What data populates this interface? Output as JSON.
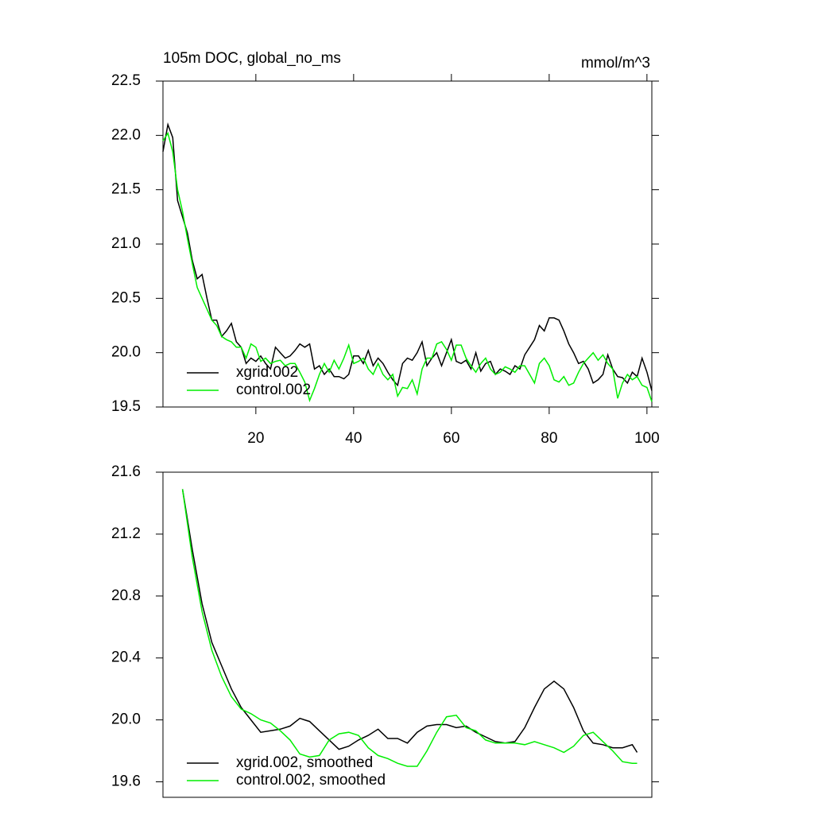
{
  "chart_data": [
    {
      "type": "line",
      "title": "105m DOC, global_no_ms",
      "units": "mmol/m^3",
      "x": [
        1,
        2,
        3,
        4,
        5,
        6,
        7,
        8,
        9,
        10,
        11,
        12,
        13,
        14,
        15,
        16,
        17,
        18,
        19,
        20,
        21,
        22,
        23,
        24,
        25,
        26,
        27,
        28,
        29,
        30,
        31,
        32,
        33,
        34,
        35,
        36,
        37,
        38,
        39,
        40,
        41,
        42,
        43,
        44,
        45,
        46,
        47,
        48,
        49,
        50,
        51,
        52,
        53,
        54,
        55,
        56,
        57,
        58,
        59,
        60,
        61,
        62,
        63,
        64,
        65,
        66,
        67,
        68,
        69,
        70,
        71,
        72,
        73,
        74,
        75,
        76,
        77,
        78,
        79,
        80,
        81,
        82,
        83,
        84,
        85,
        86,
        87,
        88,
        89,
        90,
        91,
        92,
        93,
        94,
        95,
        96,
        97,
        98,
        99,
        100,
        101
      ],
      "series": [
        {
          "name": "xgrid.002",
          "color": "#000000",
          "values": [
            21.85,
            22.1,
            21.98,
            21.4,
            21.25,
            21.1,
            20.85,
            20.68,
            20.72,
            20.5,
            20.3,
            20.3,
            20.15,
            20.2,
            20.27,
            20.1,
            20.05,
            19.9,
            19.95,
            19.92,
            19.97,
            19.9,
            19.85,
            20.05,
            20.0,
            19.95,
            19.97,
            20.02,
            20.08,
            20.05,
            20.08,
            19.85,
            19.88,
            19.8,
            19.85,
            19.78,
            19.78,
            19.76,
            19.8,
            19.97,
            19.97,
            19.9,
            20.02,
            19.88,
            19.95,
            19.9,
            19.82,
            19.75,
            19.7,
            19.9,
            19.95,
            19.93,
            20.0,
            20.1,
            19.88,
            19.95,
            20.0,
            19.88,
            20.0,
            20.12,
            19.92,
            19.9,
            19.93,
            19.85,
            20.0,
            19.83,
            19.9,
            19.92,
            19.8,
            19.85,
            19.83,
            19.8,
            19.88,
            19.85,
            19.98,
            20.05,
            20.12,
            20.25,
            20.2,
            20.32,
            20.32,
            20.3,
            20.2,
            20.08,
            20.0,
            19.9,
            19.92,
            19.85,
            19.72,
            19.75,
            19.8,
            19.98,
            19.85,
            19.78,
            19.77,
            19.72,
            19.82,
            19.78,
            19.95,
            19.82,
            19.65
          ]
        },
        {
          "name": "control.002",
          "color": "#00ee00",
          "values": [
            21.95,
            22.02,
            21.85,
            21.5,
            21.3,
            21.05,
            20.82,
            20.6,
            20.5,
            20.4,
            20.3,
            20.25,
            20.15,
            20.12,
            20.1,
            20.05,
            20.05,
            19.95,
            20.08,
            20.05,
            19.92,
            19.95,
            19.9,
            19.92,
            19.93,
            19.88,
            19.9,
            19.9,
            19.82,
            19.73,
            19.56,
            19.67,
            19.8,
            19.9,
            19.82,
            19.93,
            19.85,
            19.95,
            20.07,
            19.9,
            19.92,
            19.95,
            19.85,
            19.8,
            19.9,
            19.8,
            19.75,
            19.8,
            19.6,
            19.68,
            19.67,
            19.75,
            19.62,
            19.85,
            19.95,
            19.95,
            20.08,
            20.1,
            20.03,
            19.93,
            20.07,
            20.07,
            19.95,
            19.88,
            19.82,
            19.9,
            19.95,
            19.85,
            19.8,
            19.82,
            19.87,
            19.85,
            19.82,
            19.88,
            19.88,
            19.8,
            19.72,
            19.9,
            19.95,
            19.88,
            19.75,
            19.73,
            19.78,
            19.7,
            19.72,
            19.82,
            19.9,
            19.95,
            20.0,
            19.93,
            19.98,
            19.9,
            19.85,
            19.58,
            19.72,
            19.8,
            19.75,
            19.78,
            19.7,
            19.68,
            19.55
          ]
        }
      ],
      "xlim": [
        1,
        101
      ],
      "xticks": [
        20,
        40,
        60,
        80,
        100
      ],
      "ylim": [
        19.5,
        22.5
      ],
      "yticks": [
        19.5,
        {
          "value": 20,
          "label": "20.0"
        },
        20.5,
        {
          "value": 21,
          "label": "21.0"
        },
        21.5,
        {
          "value": 22,
          "label": "22.0"
        },
        22.5
      ]
    },
    {
      "type": "line",
      "x": [
        5,
        7,
        9,
        11,
        13,
        15,
        17,
        19,
        21,
        23,
        25,
        27,
        29,
        31,
        33,
        35,
        37,
        39,
        41,
        43,
        45,
        47,
        49,
        51,
        53,
        55,
        57,
        59,
        61,
        63,
        65,
        67,
        69,
        71,
        73,
        75,
        77,
        79,
        81,
        83,
        85,
        87,
        89,
        91,
        93,
        95,
        97,
        98
      ],
      "series": [
        {
          "name": "xgrid.002, smoothed",
          "color": "#000000",
          "values": [
            21.49,
            21.1,
            20.75,
            20.5,
            20.35,
            20.2,
            20.08,
            20.0,
            19.92,
            19.93,
            19.94,
            19.96,
            20.01,
            19.99,
            19.93,
            19.87,
            19.81,
            19.83,
            19.87,
            19.9,
            19.94,
            19.88,
            19.88,
            19.85,
            19.92,
            19.96,
            19.97,
            19.97,
            19.95,
            19.96,
            19.92,
            19.89,
            19.86,
            19.85,
            19.86,
            19.95,
            20.08,
            20.2,
            20.25,
            20.2,
            20.08,
            19.93,
            19.85,
            19.84,
            19.82,
            19.82,
            19.84,
            19.79
          ]
        },
        {
          "name": "control.002, smoothed",
          "color": "#00ee00",
          "values": [
            21.49,
            21.05,
            20.7,
            20.45,
            20.28,
            20.15,
            20.07,
            20.04,
            20.0,
            19.98,
            19.93,
            19.87,
            19.78,
            19.76,
            19.77,
            19.87,
            19.91,
            19.92,
            19.9,
            19.82,
            19.77,
            19.75,
            19.72,
            19.7,
            19.7,
            19.8,
            19.92,
            20.02,
            20.03,
            19.95,
            19.93,
            19.87,
            19.85,
            19.85,
            19.85,
            19.84,
            19.86,
            19.84,
            19.82,
            19.79,
            19.83,
            19.9,
            19.92,
            19.86,
            19.8,
            19.73,
            19.72,
            19.72
          ]
        }
      ],
      "xlim": [
        1,
        101
      ],
      "ylim": [
        19.5,
        21.6
      ],
      "yticks": [
        19.6,
        {
          "value": 20,
          "label": "20.0"
        },
        20.4,
        20.8,
        21.2,
        21.6
      ]
    }
  ]
}
